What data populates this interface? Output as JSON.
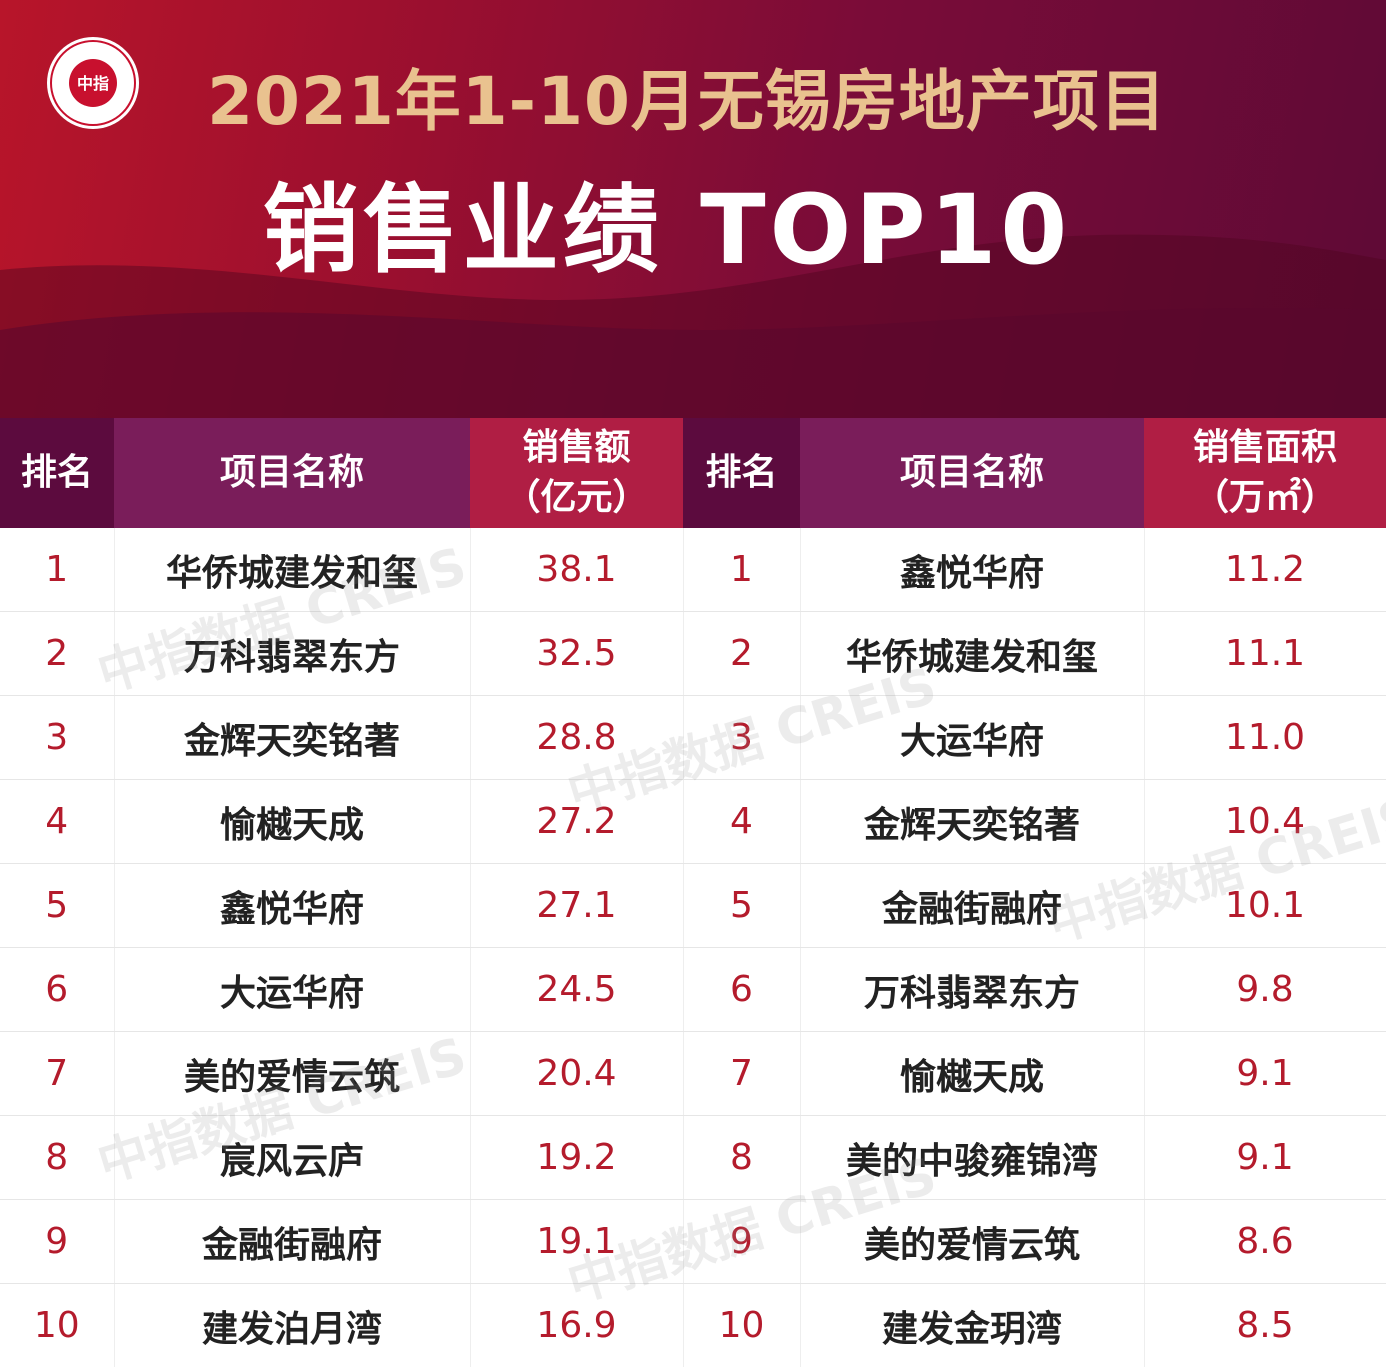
{
  "header": {
    "title_line1": "2021年1-10月无锡房地产项目",
    "title_line2": "销售业绩 TOP10",
    "logo_text": "中指"
  },
  "table_left": {
    "headers": {
      "rank": "排名",
      "name": "项目名称",
      "value_line1": "销售额",
      "value_line2": "（亿元）"
    },
    "rows": [
      {
        "rank": "1",
        "name": "华侨城建发和玺",
        "value": "38.1"
      },
      {
        "rank": "2",
        "name": "万科翡翠东方",
        "value": "32.5"
      },
      {
        "rank": "3",
        "name": "金辉天奕铭著",
        "value": "28.8"
      },
      {
        "rank": "4",
        "name": "愉樾天成",
        "value": "27.2"
      },
      {
        "rank": "5",
        "name": "鑫悦华府",
        "value": "27.1"
      },
      {
        "rank": "6",
        "name": "大运华府",
        "value": "24.5"
      },
      {
        "rank": "7",
        "name": "美的爱情云筑",
        "value": "20.4"
      },
      {
        "rank": "8",
        "name": "宸风云庐",
        "value": "19.2"
      },
      {
        "rank": "9",
        "name": "金融街融府",
        "value": "19.1"
      },
      {
        "rank": "10",
        "name": "建发泊月湾",
        "value": "16.9"
      }
    ]
  },
  "table_right": {
    "headers": {
      "rank": "排名",
      "name": "项目名称",
      "value_line1": "销售面积",
      "value_line2": "（万㎡）"
    },
    "rows": [
      {
        "rank": "1",
        "name": "鑫悦华府",
        "value": "11.2"
      },
      {
        "rank": "2",
        "name": "华侨城建发和玺",
        "value": "11.1"
      },
      {
        "rank": "3",
        "name": "大运华府",
        "value": "11.0"
      },
      {
        "rank": "4",
        "name": "金辉天奕铭著",
        "value": "10.4"
      },
      {
        "rank": "5",
        "name": "金融街融府",
        "value": "10.1"
      },
      {
        "rank": "6",
        "name": "万科翡翠东方",
        "value": "9.8"
      },
      {
        "rank": "7",
        "name": "愉樾天成",
        "value": "9.1"
      },
      {
        "rank": "8",
        "name": "美的中骏雍锦湾",
        "value": "9.1"
      },
      {
        "rank": "9",
        "name": "美的爱情云筑",
        "value": "8.6"
      },
      {
        "rank": "10",
        "name": "建发金玥湾",
        "value": "8.5"
      }
    ]
  },
  "watermark": "中指数据 CREIS",
  "colors": {
    "banner_red": "#b8152a",
    "banner_purple": "#5e0a36",
    "title_gold": "#e9c28f",
    "value_red": "#b41b2c"
  }
}
